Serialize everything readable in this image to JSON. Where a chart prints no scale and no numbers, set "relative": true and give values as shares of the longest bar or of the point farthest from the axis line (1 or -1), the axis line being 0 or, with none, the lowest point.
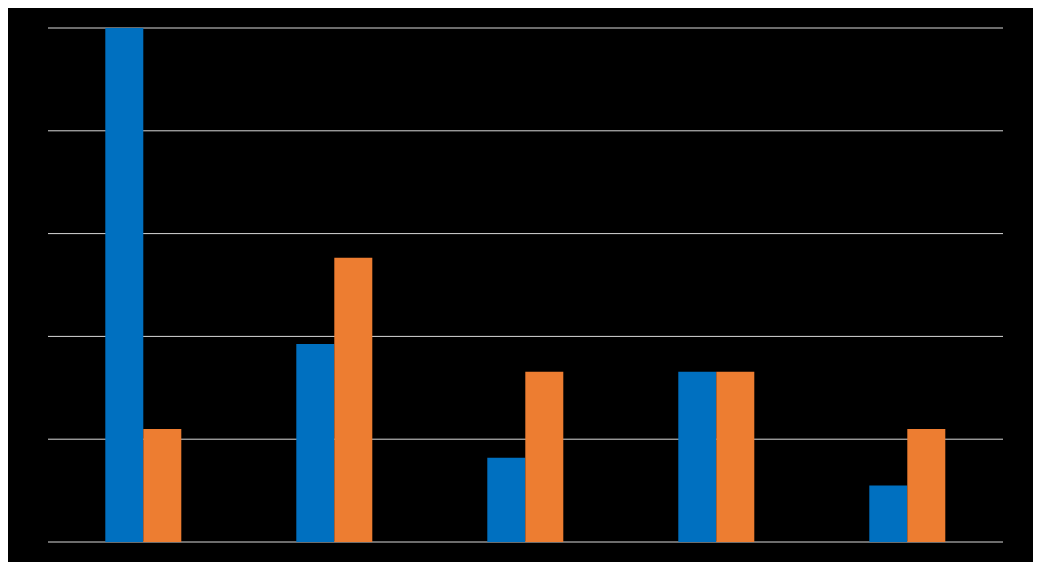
{
  "chart_data": {
    "type": "bar",
    "relative": true,
    "grid": "y",
    "categories": [
      null,
      null,
      null,
      null,
      null
    ],
    "series": [
      {
        "color": "#0070c0",
        "values": [
          1,
          0.385,
          0.164,
          0.331,
          0.11
        ]
      },
      {
        "color": "#ed7d31",
        "values": [
          0.22,
          0.553,
          0.331,
          0.331,
          0.22
        ]
      }
    ]
  }
}
